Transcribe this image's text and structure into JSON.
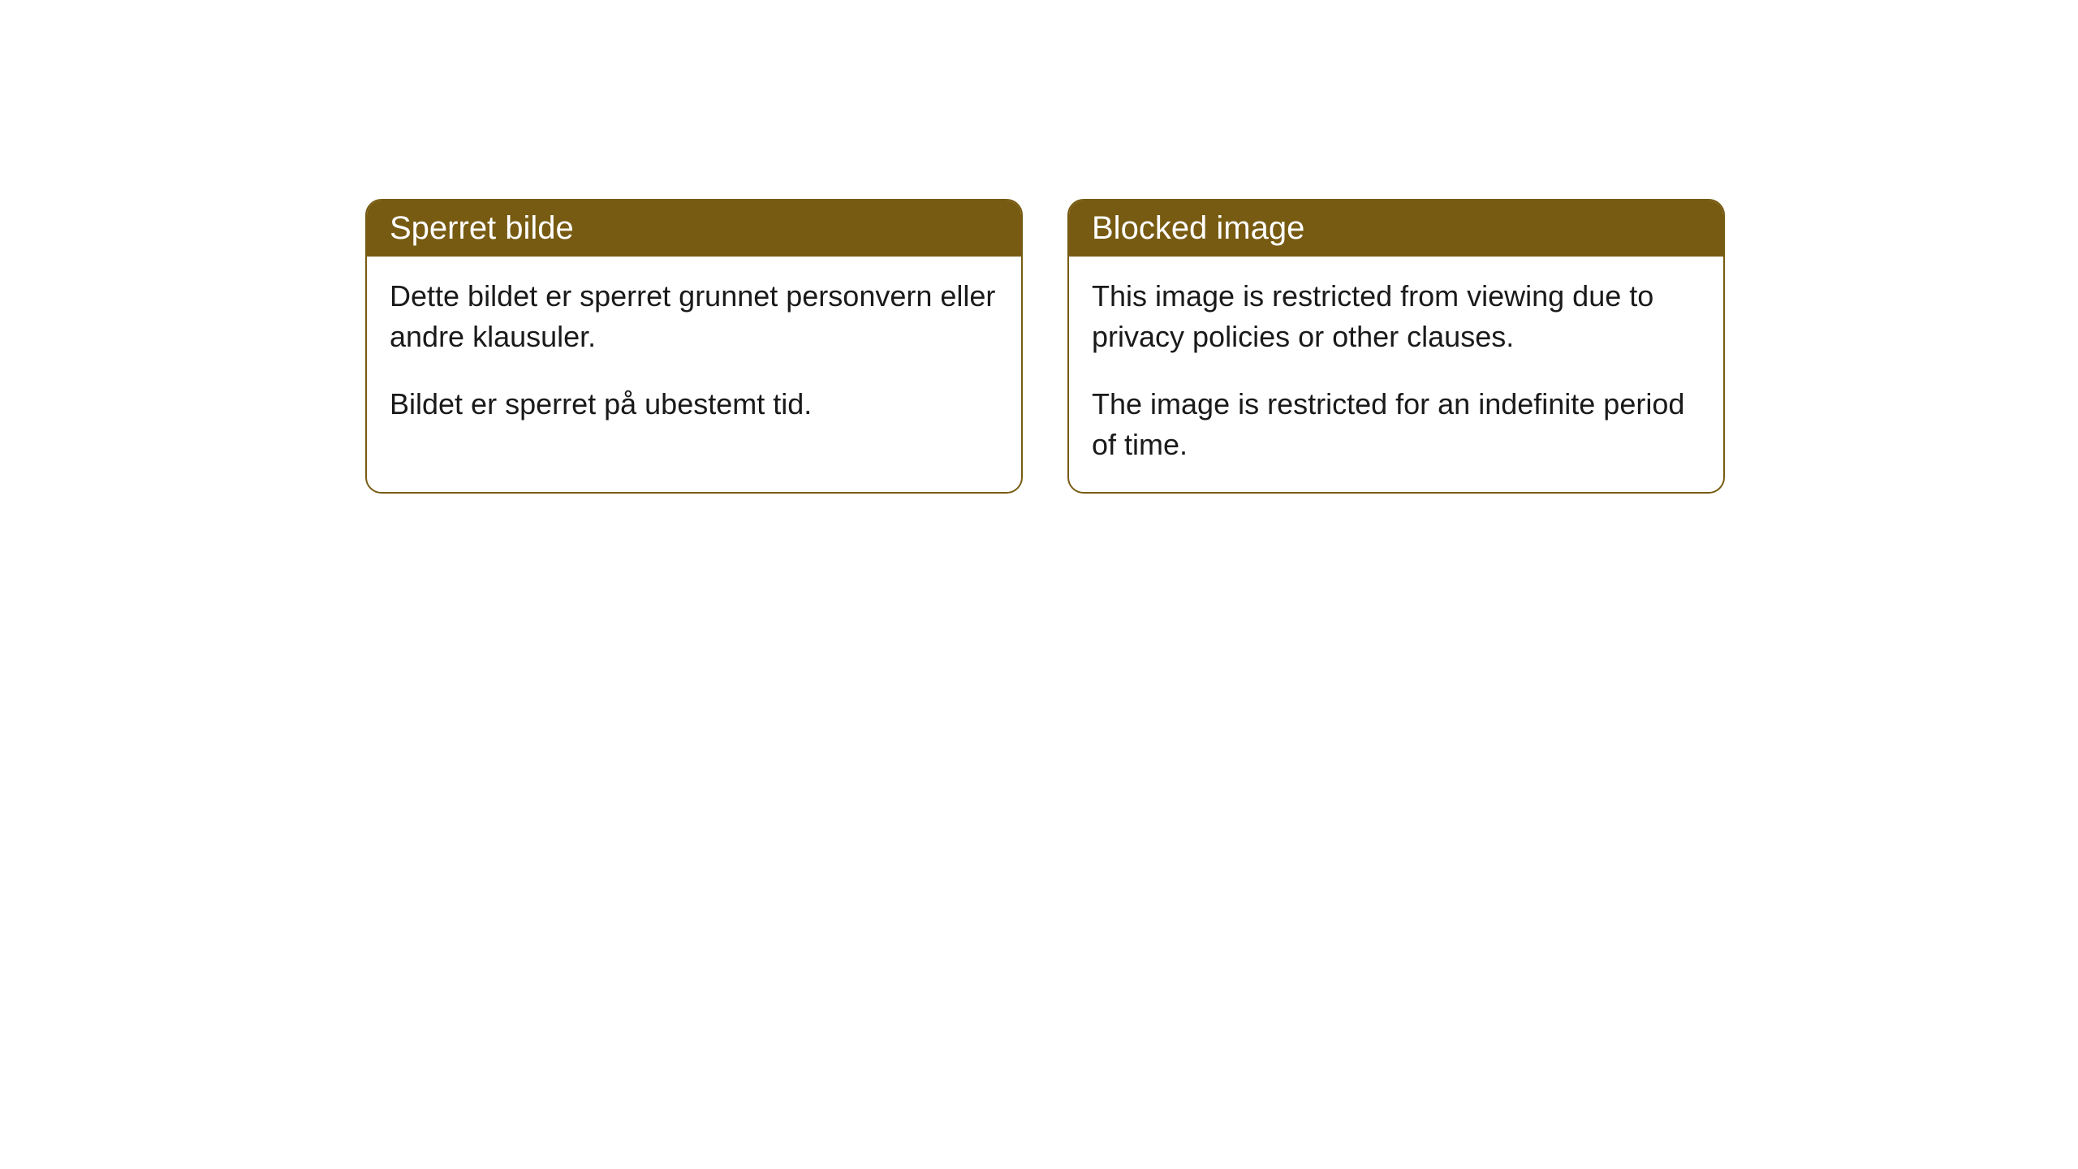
{
  "cards": [
    {
      "title": "Sperret bilde",
      "paragraph1": "Dette bildet er sperret grunnet personvern eller andre klausuler.",
      "paragraph2": "Bildet er sperret på ubestemt tid."
    },
    {
      "title": "Blocked image",
      "paragraph1": "This image is restricted from viewing due to privacy policies or other clauses.",
      "paragraph2": "The image is restricted for an indefinite period of time."
    }
  ],
  "colors": {
    "header_background": "#775b12",
    "header_text": "#ffffff",
    "border": "#775b12",
    "body_text": "#1a1a1a",
    "card_background": "#ffffff",
    "page_background": "#ffffff"
  }
}
